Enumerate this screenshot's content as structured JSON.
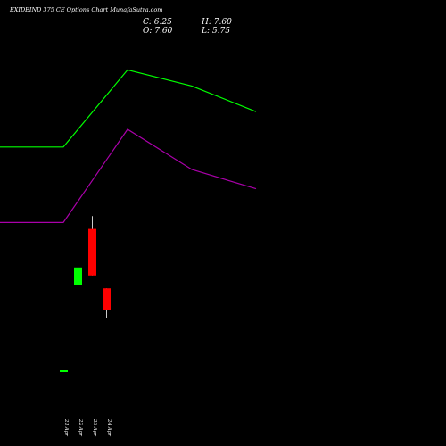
{
  "title": "EXIDEIND 375 CE Options  Chart MunafaSutra.com",
  "ohlc": {
    "close_label": "C:",
    "close": "6.25",
    "high_label": "H:",
    "high": "7.60",
    "open_label": "O:",
    "open": "7.60",
    "low_label": "L:",
    "low": "5.75"
  },
  "colors": {
    "background": "#000000",
    "up": "#00ff00",
    "down": "#ff0000",
    "line_upper": "#00ff00",
    "line_lower": "#aa00aa",
    "text": "#ffffff"
  },
  "chart_data": {
    "type": "candlestick",
    "title": "EXIDEIND 375 CE Options  Chart MunafaSutra.com",
    "categories": [
      "21 Apr",
      "22 Apr",
      "23 Apr",
      "24 Apr"
    ],
    "candles": [
      {
        "date": "21 Apr",
        "open": 2.5,
        "high": 2.5,
        "low": 2.5,
        "close": 2.5
      },
      {
        "date": "22 Apr",
        "open": 7.8,
        "high": 10.5,
        "low": 7.8,
        "close": 8.9
      },
      {
        "date": "23 Apr",
        "open": 11.3,
        "high": 12.1,
        "low": 8.4,
        "close": 8.4
      },
      {
        "date": "24 Apr",
        "open": 7.6,
        "high": 7.6,
        "low": 5.75,
        "close": 6.25
      }
    ],
    "overlay_lines": [
      {
        "color": "#00ff00",
        "points": [
          [
            -2,
            16.4
          ],
          [
            -1,
            16.4
          ],
          [
            0,
            16.4
          ],
          [
            1,
            21.2
          ],
          [
            2,
            20.2
          ],
          [
            3,
            18.6
          ]
        ]
      },
      {
        "color": "#aa00aa",
        "points": [
          [
            -2,
            11.7
          ],
          [
            -1,
            11.7
          ],
          [
            0,
            11.7
          ],
          [
            1,
            17.5
          ],
          [
            2,
            15.0
          ],
          [
            3,
            13.8
          ]
        ]
      }
    ],
    "ylim": [
      0,
      25
    ],
    "grid": false
  }
}
